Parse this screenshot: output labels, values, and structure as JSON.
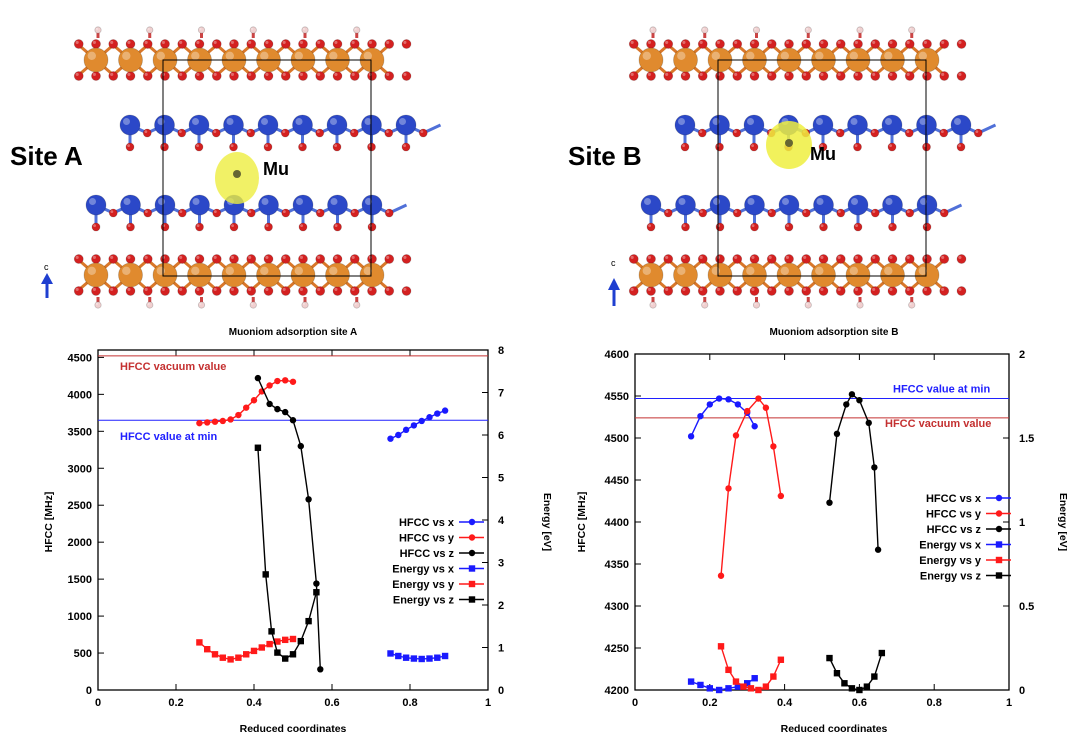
{
  "structures": [
    {
      "site_label": "Site A",
      "mu_label": "Mu",
      "axis_label": "c"
    },
    {
      "site_label": "Site B",
      "mu_label": "Mu",
      "axis_label": "c"
    }
  ],
  "colors": {
    "fe_atom": "#e08a2e",
    "o_atom": "#d42020",
    "n_atom": "#2b48c8",
    "h_atom": "#f0d0d0",
    "isosurface": "#eeee40",
    "blue": "#1a1aff",
    "red": "#ff1a1a",
    "black": "#000000",
    "vacuum_line": "#c43030",
    "min_line": "#2020ff"
  },
  "chart_data": [
    {
      "type": "line",
      "title": "Muoniom adsorption site A",
      "xlabel": "Reduced coordinates",
      "ylabel": "HFCC [MHz]",
      "y2label": "Energy [eV]",
      "xlim": [
        0,
        1
      ],
      "ylim": [
        0,
        4600
      ],
      "y2lim": [
        0,
        8
      ],
      "xticks": [
        "0",
        "0.2",
        "0.4",
        "0.6",
        "0.8",
        "1"
      ],
      "yticks": [
        "0",
        "500",
        "1000",
        "1500",
        "2000",
        "2500",
        "3000",
        "3500",
        "4000",
        "4500"
      ],
      "y2ticks": [
        "0",
        "1",
        "2",
        "3",
        "4",
        "5",
        "6",
        "7",
        "8"
      ],
      "hlines": [
        {
          "name": "HFCC vacuum value",
          "y": 4520,
          "color": "#c43030"
        },
        {
          "name": "HFCC value at min",
          "y": 3650,
          "color": "#2020ff"
        }
      ],
      "legend": "center-right",
      "series": [
        {
          "name": "HFCC vs x",
          "axis": "left",
          "marker": "circle",
          "color": "#1a1aff",
          "x": [
            0.75,
            0.77,
            0.79,
            0.81,
            0.83,
            0.85,
            0.87,
            0.89
          ],
          "y": [
            3400,
            3450,
            3520,
            3580,
            3640,
            3690,
            3740,
            3780
          ]
        },
        {
          "name": "HFCC vs y",
          "axis": "left",
          "marker": "circle",
          "color": "#ff1a1a",
          "x": [
            0.26,
            0.28,
            0.3,
            0.32,
            0.34,
            0.36,
            0.38,
            0.4,
            0.42,
            0.44,
            0.46,
            0.48,
            0.5
          ],
          "y": [
            3610,
            3620,
            3630,
            3640,
            3660,
            3720,
            3820,
            3920,
            4040,
            4120,
            4180,
            4190,
            4170
          ]
        },
        {
          "name": "HFCC vs z",
          "axis": "left",
          "marker": "circle",
          "color": "#000000",
          "x": [
            0.41,
            0.44,
            0.46,
            0.48,
            0.5,
            0.52,
            0.54,
            0.56,
            0.57
          ],
          "y": [
            4220,
            3870,
            3800,
            3760,
            3650,
            3300,
            2580,
            1440,
            280
          ]
        },
        {
          "name": "Energy vs x",
          "axis": "right",
          "marker": "square",
          "color": "#1a1aff",
          "x": [
            0.75,
            0.77,
            0.79,
            0.81,
            0.83,
            0.85,
            0.87,
            0.89
          ],
          "y": [
            0.86,
            0.8,
            0.76,
            0.74,
            0.73,
            0.74,
            0.76,
            0.8
          ]
        },
        {
          "name": "Energy vs y",
          "axis": "right",
          "marker": "square",
          "color": "#ff1a1a",
          "x": [
            0.26,
            0.28,
            0.3,
            0.32,
            0.34,
            0.36,
            0.38,
            0.4,
            0.42,
            0.44,
            0.46,
            0.48,
            0.5
          ],
          "y": [
            1.12,
            0.96,
            0.84,
            0.76,
            0.72,
            0.76,
            0.84,
            0.92,
            1.0,
            1.08,
            1.14,
            1.18,
            1.2
          ]
        },
        {
          "name": "Energy vs z",
          "axis": "right",
          "marker": "square",
          "color": "#000000",
          "x": [
            0.41,
            0.43,
            0.445,
            0.46,
            0.48,
            0.5,
            0.52,
            0.54,
            0.56
          ],
          "y": [
            5.7,
            2.72,
            1.38,
            0.88,
            0.74,
            0.84,
            1.15,
            1.62,
            2.3
          ]
        }
      ]
    },
    {
      "type": "line",
      "title": "Muoniom adsorption site B",
      "xlabel": "Reduced coordinates",
      "ylabel": "HFCC [MHz]",
      "y2label": "Energy [eV]",
      "xlim": [
        0,
        1
      ],
      "ylim": [
        4200,
        4600
      ],
      "y2lim": [
        0,
        2
      ],
      "xticks": [
        "0",
        "0.2",
        "0.4",
        "0.6",
        "0.8",
        "1"
      ],
      "yticks": [
        "4200",
        "4250",
        "4300",
        "4350",
        "4400",
        "4450",
        "4500",
        "4550",
        "4600"
      ],
      "y2ticks": [
        "0",
        "0.5",
        "1",
        "1.5",
        "2"
      ],
      "hlines": [
        {
          "name": "HFCC value at min",
          "y": 4547,
          "color": "#2020ff"
        },
        {
          "name": "HFCC vacuum value",
          "y": 4524,
          "color": "#c43030"
        }
      ],
      "legend": "center-right",
      "series": [
        {
          "name": "HFCC vs x",
          "axis": "left",
          "marker": "circle",
          "color": "#1a1aff",
          "x": [
            0.15,
            0.175,
            0.2,
            0.225,
            0.25,
            0.275,
            0.3,
            0.32
          ],
          "y": [
            4502,
            4526,
            4540,
            4547,
            4546,
            4540,
            4530,
            4514
          ]
        },
        {
          "name": "HFCC vs y",
          "axis": "left",
          "marker": "circle",
          "color": "#ff1a1a",
          "x": [
            0.23,
            0.25,
            0.27,
            0.3,
            0.33,
            0.35,
            0.37,
            0.39
          ],
          "y": [
            4336,
            4440,
            4503,
            4532,
            4547,
            4536,
            4490,
            4431
          ]
        },
        {
          "name": "HFCC vs z",
          "axis": "left",
          "marker": "circle",
          "color": "#000000",
          "x": [
            0.52,
            0.54,
            0.565,
            0.58,
            0.6,
            0.625,
            0.64,
            0.65
          ],
          "y": [
            4423,
            4505,
            4540,
            4552,
            4545,
            4518,
            4465,
            4367
          ]
        },
        {
          "name": "Energy vs x",
          "axis": "right",
          "marker": "square",
          "color": "#1a1aff",
          "x": [
            0.15,
            0.175,
            0.2,
            0.225,
            0.25,
            0.275,
            0.3,
            0.32
          ],
          "y": [
            0.05,
            0.03,
            0.01,
            0.0,
            0.01,
            0.02,
            0.04,
            0.07
          ]
        },
        {
          "name": "Energy vs y",
          "axis": "right",
          "marker": "square",
          "color": "#ff1a1a",
          "x": [
            0.23,
            0.25,
            0.27,
            0.29,
            0.31,
            0.33,
            0.35,
            0.37,
            0.39
          ],
          "y": [
            0.26,
            0.12,
            0.05,
            0.02,
            0.01,
            0.0,
            0.02,
            0.08,
            0.18
          ]
        },
        {
          "name": "Energy vs z",
          "axis": "right",
          "marker": "square",
          "color": "#000000",
          "x": [
            0.52,
            0.54,
            0.56,
            0.58,
            0.6,
            0.62,
            0.64,
            0.66
          ],
          "y": [
            0.19,
            0.1,
            0.04,
            0.01,
            0.0,
            0.02,
            0.08,
            0.22
          ]
        }
      ]
    }
  ]
}
